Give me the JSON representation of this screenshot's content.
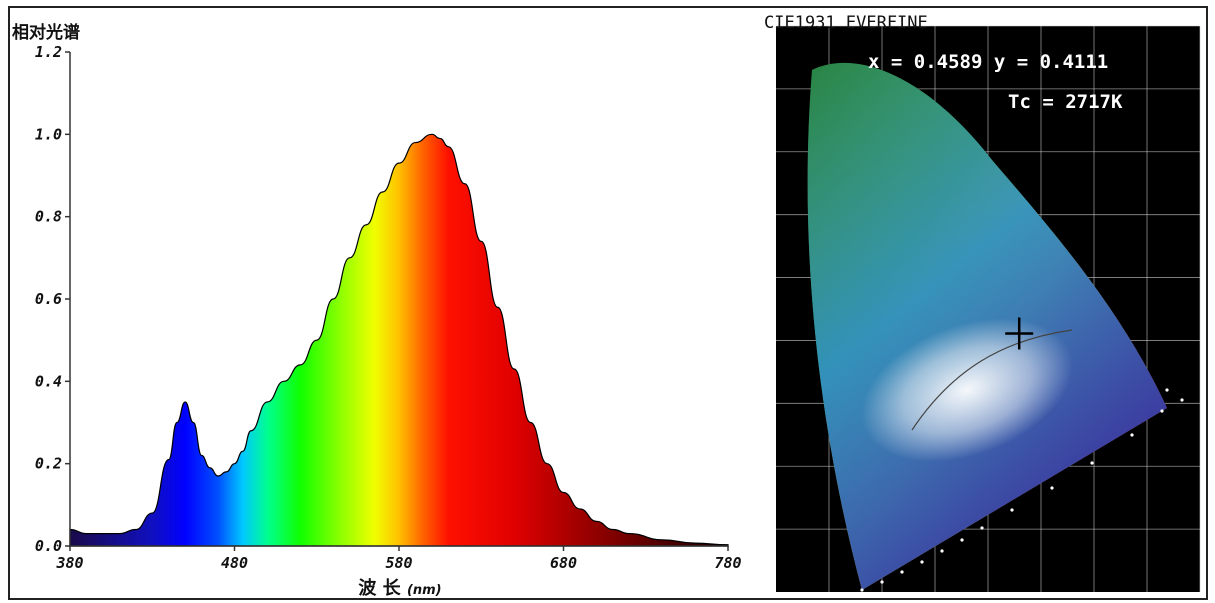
{
  "chart_data": [
    {
      "type": "area",
      "title": "相对光谱",
      "xlabel": "波 长",
      "xlabel_unit": "(nm)",
      "xlim": [
        380,
        780
      ],
      "ylim": [
        0,
        1.2
      ],
      "xticks": [
        380,
        480,
        580,
        680,
        780
      ],
      "yticks": [
        "0.0",
        "0.2",
        "0.4",
        "0.6",
        "0.8",
        "1.0",
        "1.2"
      ],
      "fill": "visible-spectrum gradient",
      "x": [
        380,
        390,
        400,
        410,
        420,
        430,
        440,
        445,
        450,
        455,
        460,
        465,
        470,
        475,
        480,
        485,
        490,
        500,
        510,
        520,
        530,
        540,
        550,
        560,
        570,
        580,
        590,
        600,
        605,
        610,
        620,
        630,
        640,
        650,
        660,
        670,
        680,
        690,
        700,
        710,
        720,
        740,
        760,
        780
      ],
      "y": [
        0.04,
        0.03,
        0.03,
        0.03,
        0.04,
        0.08,
        0.21,
        0.3,
        0.35,
        0.3,
        0.22,
        0.19,
        0.17,
        0.18,
        0.2,
        0.23,
        0.28,
        0.35,
        0.4,
        0.44,
        0.5,
        0.6,
        0.7,
        0.78,
        0.86,
        0.93,
        0.98,
        1.0,
        0.99,
        0.97,
        0.88,
        0.74,
        0.58,
        0.43,
        0.3,
        0.2,
        0.13,
        0.09,
        0.06,
        0.04,
        0.03,
        0.015,
        0.007,
        0.003
      ]
    },
    {
      "type": "scatter",
      "title": "CIE1931 EVERFINE",
      "annotations": [
        "x = 0.4589 y = 0.4111",
        "Tc = 2717K"
      ],
      "point": {
        "x": 0.4589,
        "y": 0.4111
      },
      "xlim": [
        0,
        0.8
      ],
      "ylim": [
        0,
        0.9
      ],
      "grid": true,
      "background": "#000000",
      "marker_color": "#000000"
    }
  ]
}
